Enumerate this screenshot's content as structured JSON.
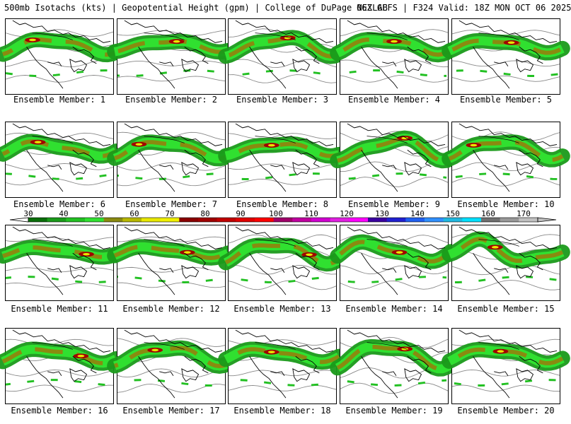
{
  "header": {
    "left": "500mb Isotachs (kts) | Geopotential Height (gpm) | College of DuPage NEXLAB",
    "right": "06Z GEFS | F324 Valid: 18Z MON OCT 06 2025"
  },
  "colorbar": {
    "labels": [
      "30",
      "40",
      "50",
      "60",
      "70",
      "80",
      "90",
      "100",
      "110",
      "120",
      "130",
      "140",
      "150",
      "160",
      "170"
    ],
    "colors": [
      "#0a6e0a",
      "#1a9a1a",
      "#22c022",
      "#30e030",
      "#8a8a10",
      "#b8b800",
      "#e8e800",
      "#f0f000",
      "#8a0000",
      "#a00000",
      "#c00000",
      "#e00000",
      "#ff0000",
      "#a0006a",
      "#c000a0",
      "#d000d0",
      "#e020e0",
      "#ff00ff",
      "#3a00a0",
      "#2020d0",
      "#2060f0",
      "#3090ff",
      "#20b8e0",
      "#00e0ff",
      "#707070",
      "#999999",
      "#c0c0c0"
    ]
  },
  "panels": [
    {
      "label": "Ensemble Member: 1",
      "trough": 0.35,
      "ridge": 0.55,
      "amp": 10,
      "core": 0.25
    },
    {
      "label": "Ensemble Member: 2",
      "trough": 0.3,
      "ridge": 0.6,
      "amp": 7,
      "core": 0.55
    },
    {
      "label": "Ensemble Member: 3",
      "trough": 0.28,
      "ridge": 0.62,
      "amp": 12,
      "core": 0.55
    },
    {
      "label": "Ensemble Member: 4",
      "trough": 0.38,
      "ridge": 0.65,
      "amp": 10,
      "core": 0.5
    },
    {
      "label": "Ensemble Member: 5",
      "trough": 0.4,
      "ridge": 0.7,
      "amp": 8,
      "core": 0.55
    },
    {
      "label": "Ensemble Member: 6",
      "trough": 0.45,
      "ridge": 0.6,
      "amp": 9,
      "core": 0.3
    },
    {
      "label": "Ensemble Member: 7",
      "trough": 0.35,
      "ridge": 0.55,
      "amp": 11,
      "core": 0.2
    },
    {
      "label": "Ensemble Member: 8",
      "trough": 0.3,
      "ridge": 0.6,
      "amp": 8,
      "core": 0.4
    },
    {
      "label": "Ensemble Member: 9",
      "trough": 0.25,
      "ridge": 0.65,
      "amp": 14,
      "core": 0.6
    },
    {
      "label": "Ensemble Member: 10",
      "trough": 0.33,
      "ridge": 0.66,
      "amp": 12,
      "core": 0.2
    },
    {
      "label": "Ensemble Member: 11",
      "trough": 0.42,
      "ridge": 0.6,
      "amp": 6,
      "core": 0.75
    },
    {
      "label": "Ensemble Member: 12",
      "trough": 0.45,
      "ridge": 0.7,
      "amp": 7,
      "core": 0.65
    },
    {
      "label": "Ensemble Member: 13",
      "trough": 0.35,
      "ridge": 0.65,
      "amp": 13,
      "core": 0.75
    },
    {
      "label": "Ensemble Member: 14",
      "trough": 0.5,
      "ridge": 0.7,
      "amp": 12,
      "core": 0.55
    },
    {
      "label": "Ensemble Member: 15",
      "trough": 0.55,
      "ridge": 0.3,
      "amp": 14,
      "core": 0.4
    },
    {
      "label": "Ensemble Member: 16",
      "trough": 0.4,
      "ridge": 0.65,
      "amp": 9,
      "core": 0.7
    },
    {
      "label": "Ensemble Member: 17",
      "trough": 0.3,
      "ridge": 0.6,
      "amp": 12,
      "core": 0.35
    },
    {
      "label": "Ensemble Member: 18",
      "trough": 0.45,
      "ridge": 0.7,
      "amp": 8,
      "core": 0.4
    },
    {
      "label": "Ensemble Member: 19",
      "trough": 0.35,
      "ridge": 0.6,
      "amp": 15,
      "core": 0.6
    },
    {
      "label": "Ensemble Member: 20",
      "trough": 0.4,
      "ridge": 0.7,
      "amp": 9,
      "core": 0.45
    }
  ]
}
